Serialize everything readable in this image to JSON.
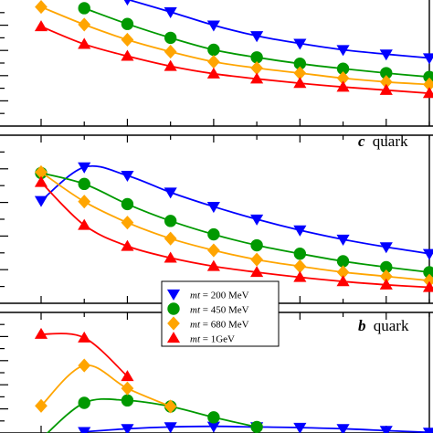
{
  "chart_data": [
    {
      "panel": "top",
      "type": "line",
      "title": "",
      "xlim": [
        0.5,
        10.0
      ],
      "ylim": [
        0,
        10
      ],
      "legend": false,
      "x": [
        1,
        2,
        3,
        4,
        5,
        6,
        7,
        8,
        9,
        10
      ],
      "series": [
        {
          "name": "mt = 200 MeV",
          "color": "#0000ff",
          "marker": "triangle-down",
          "values": [
            null,
            null,
            10.05,
            9.05,
            8.0,
            7.15,
            6.55,
            6.05,
            5.7,
            5.4
          ]
        },
        {
          "name": "mt = 450 MeV",
          "color": "#009900",
          "marker": "circle",
          "values": [
            null,
            9.35,
            8.1,
            7.0,
            6.05,
            5.45,
            4.95,
            4.55,
            4.2,
            3.9
          ]
        },
        {
          "name": "mt = 680 MeV",
          "color": "#ffa500",
          "marker": "diamond",
          "values": [
            9.45,
            8.05,
            6.85,
            5.9,
            5.1,
            4.6,
            4.2,
            3.8,
            3.5,
            3.3
          ]
        },
        {
          "name": "mt = 1GeV",
          "color": "#ff0000",
          "marker": "triangle-up",
          "values": [
            7.9,
            6.5,
            5.55,
            4.75,
            4.15,
            3.75,
            3.4,
            3.1,
            2.85,
            2.6
          ]
        }
      ]
    },
    {
      "panel": "middle",
      "type": "line",
      "label_quark": "c",
      "label_word": "quark",
      "xlim": [
        0.5,
        10.0
      ],
      "ylim": [
        0,
        10
      ],
      "legend": false,
      "x": [
        1,
        2,
        3,
        4,
        5,
        6,
        7,
        8,
        9,
        10
      ],
      "series": [
        {
          "name": "mt = 200 MeV",
          "color": "#0000ff",
          "marker": "triangle-down",
          "values": [
            6.1,
            8.1,
            7.6,
            6.6,
            5.75,
            5.0,
            4.35,
            3.8,
            3.35,
            2.95
          ]
        },
        {
          "name": "mt = 450 MeV",
          "color": "#009900",
          "marker": "circle",
          "values": [
            7.75,
            7.1,
            5.9,
            4.9,
            4.1,
            3.45,
            2.95,
            2.5,
            2.15,
            1.85
          ]
        },
        {
          "name": "mt = 680 MeV",
          "color": "#ffa500",
          "marker": "diamond",
          "values": [
            7.8,
            6.05,
            4.8,
            3.85,
            3.15,
            2.6,
            2.2,
            1.85,
            1.6,
            1.35
          ]
        },
        {
          "name": "mt = 1GeV",
          "color": "#ff0000",
          "marker": "triangle-up",
          "values": [
            7.2,
            4.65,
            3.4,
            2.7,
            2.2,
            1.85,
            1.55,
            1.3,
            1.1,
            0.95
          ]
        }
      ]
    },
    {
      "panel": "bottom",
      "type": "line",
      "label_quark": "b",
      "label_word": "quark",
      "xlim": [
        0.5,
        10.0
      ],
      "ylim": [
        0,
        10
      ],
      "legend": "top-center",
      "x": [
        1,
        2,
        3,
        4,
        5,
        6,
        7,
        8,
        9,
        10
      ],
      "series": [
        {
          "name": "mt = 200 MeV",
          "color": "#0000ff",
          "marker": "triangle-down",
          "values": [
            null,
            0.1,
            0.35,
            0.5,
            0.55,
            0.5,
            0.45,
            0.35,
            0.2,
            0.05
          ]
        },
        {
          "name": "mt = 450 MeV",
          "color": "#009900",
          "marker": "circle",
          "values": [
            -0.5,
            2.5,
            2.7,
            2.2,
            1.3,
            0.5,
            null,
            null,
            null,
            null
          ]
        },
        {
          "name": "mt = 680 MeV",
          "color": "#ffa500",
          "marker": "diamond",
          "values": [
            2.25,
            5.6,
            3.7,
            2.2,
            null,
            null,
            null,
            null,
            null,
            null
          ]
        },
        {
          "name": "mt = 1GeV",
          "color": "#ff0000",
          "marker": "triangle-up",
          "values": [
            8.2,
            7.9,
            4.7,
            null,
            null,
            null,
            null,
            null,
            null,
            null
          ]
        }
      ]
    }
  ],
  "legend": {
    "entries": [
      {
        "label": "mt = 200 MeV",
        "var": "mt",
        "rest": " = 200 MeV",
        "color": "#0000ff",
        "marker": "triangle-down"
      },
      {
        "label": "mt = 450 MeV",
        "var": "mt",
        "rest": " = 450 MeV",
        "color": "#009900",
        "marker": "circle"
      },
      {
        "label": "mt = 680 MeV",
        "var": "mt",
        "rest": " = 680 MeV",
        "color": "#ffa500",
        "marker": "diamond"
      },
      {
        "label": "mt = 1GeV",
        "var": "mt",
        "rest": " = 1GeV",
        "color": "#ff0000",
        "marker": "triangle-up"
      }
    ]
  }
}
